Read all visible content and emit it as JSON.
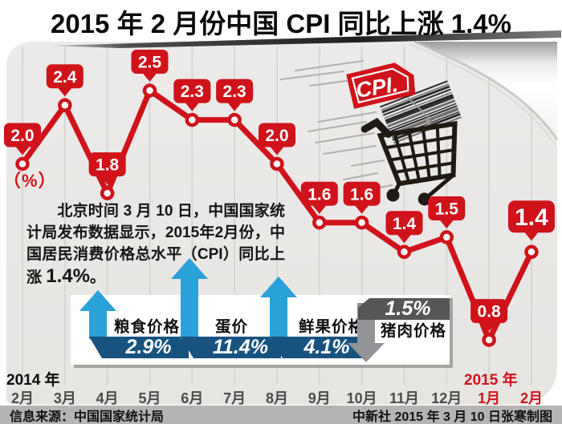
{
  "title": "2015 年 2 月份中国 CPI 同比上涨 1.4%",
  "unit_label": "（%）",
  "cart_badge": "CPI.",
  "description": {
    "before": "　　北京时间 3 月 10 日，中国国家统计局发布数据显示，2015年2月份，中国居民消费价格总水平（CPI）同比上涨 ",
    "highlight": "1.4%",
    "after": "。"
  },
  "chart_data": {
    "type": "line",
    "title": "2015 年 2 月份中国 CPI 同比上涨 1.4%",
    "ylabel": "（%）",
    "x": [
      "2月",
      "3月",
      "4月",
      "5月",
      "6月",
      "7月",
      "8月",
      "9月",
      "10月",
      "11月",
      "12月",
      "1月",
      "2月"
    ],
    "values": [
      2.0,
      2.4,
      1.8,
      2.5,
      2.3,
      2.3,
      2.0,
      1.6,
      1.6,
      1.4,
      1.5,
      0.8,
      1.4
    ],
    "labels": [
      "2.0",
      "2.4",
      "1.8",
      "2.5",
      "2.3",
      "2.3",
      "2.0",
      "1.6",
      "1.6",
      "1.4",
      "1.5",
      "0.8",
      "1.4"
    ],
    "line_color": "#d0121a",
    "grid": true,
    "highlight_last": true
  },
  "annotations": [
    {
      "label": "粮食价格",
      "value": "2.9%",
      "direction": "up"
    },
    {
      "label": "蛋价",
      "value": "11.4%",
      "direction": "up"
    },
    {
      "label": "鲜果价格",
      "value": "4.1%",
      "direction": "up"
    },
    {
      "label": "猪肉价格",
      "value": "1.5%",
      "direction": "down"
    }
  ],
  "axis": {
    "year_left": "2014 年",
    "year_right": "2015 年",
    "red_from_index": 11
  },
  "footer": {
    "source": "信息来源：中国国家统计局",
    "credit": "中新社 2015 年 3 月 10 日张寒制图"
  },
  "colors": {
    "red": "#d0121a",
    "arrow_up": "#2ba1d9",
    "banner_up": "#18527e",
    "arrow_down": "#919396",
    "banner_down": "#565658",
    "footer_bg": "#b5b4b2"
  }
}
